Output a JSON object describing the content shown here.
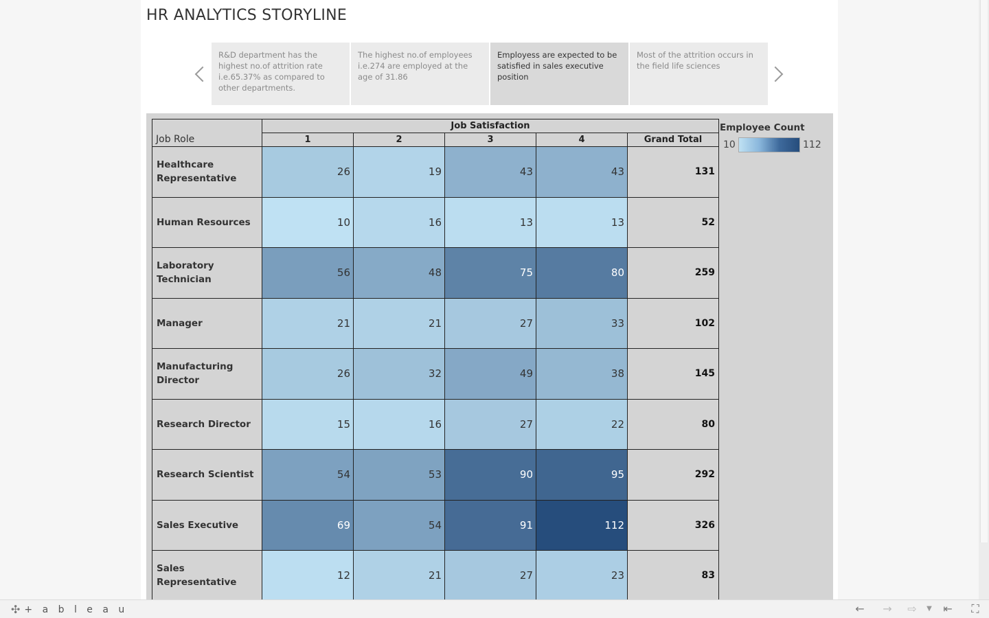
{
  "story": {
    "title": "HR ANALYTICS STORYLINE",
    "points": [
      {
        "text": "R&D department has the highest no.of attrition rate i.e.65.37% as compared to other departments."
      },
      {
        "text": "The highest no.of employees i.e.274 are employed at the age of 31.86"
      },
      {
        "text": "Employess are expected to be satisfied in sales executive position"
      },
      {
        "text": "Most of the attrition  occurs in the field life sciences"
      }
    ],
    "active_index": 2
  },
  "chart_data": {
    "type": "heatmap",
    "row_header": "Job Role",
    "column_group_header": "Job Satisfaction",
    "columns": [
      "1",
      "2",
      "3",
      "4"
    ],
    "total_label": "Grand Total",
    "rows": [
      {
        "role": "Healthcare Representative",
        "values": [
          26,
          19,
          43,
          43
        ],
        "total": 131
      },
      {
        "role": "Human Resources",
        "values": [
          10,
          16,
          13,
          13
        ],
        "total": 52
      },
      {
        "role": "Laboratory Technician",
        "values": [
          56,
          48,
          75,
          80
        ],
        "total": 259
      },
      {
        "role": "Manager",
        "values": [
          21,
          21,
          27,
          33
        ],
        "total": 102
      },
      {
        "role": "Manufacturing Director",
        "values": [
          26,
          32,
          49,
          38
        ],
        "total": 145
      },
      {
        "role": "Research Director",
        "values": [
          15,
          16,
          27,
          22
        ],
        "total": 80
      },
      {
        "role": "Research Scientist",
        "values": [
          54,
          53,
          90,
          95
        ],
        "total": 292
      },
      {
        "role": "Sales Executive",
        "values": [
          69,
          54,
          91,
          112
        ],
        "total": 326
      },
      {
        "role": "Sales Representative",
        "values": [
          12,
          21,
          27,
          23
        ],
        "total": 83
      }
    ],
    "legend": {
      "title": "Employee Count",
      "min": 10,
      "max": 112
    },
    "color_scale": [
      "#bfe1f3",
      "#264d7c"
    ]
  },
  "toolbar": {
    "logo_text": "+ a b l e a u",
    "logo_icon": "tableau-logo-icon",
    "icons": [
      "undo-icon",
      "redo-icon",
      "revert-icon",
      "revert-dropdown-icon",
      "revert-all-icon",
      "fullscreen-icon"
    ]
  }
}
